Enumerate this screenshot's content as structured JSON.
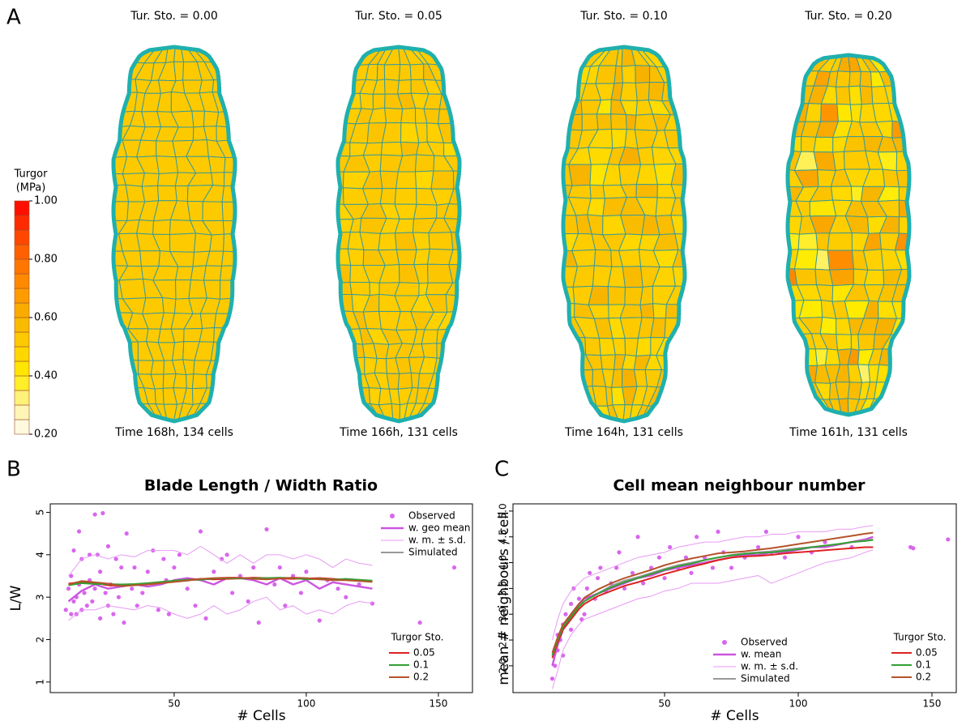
{
  "panel_a": {
    "label": "A",
    "colorbar": {
      "title": [
        "Turgor",
        "(MPa)"
      ],
      "lim": [
        0.2,
        1.0
      ],
      "ticks": [
        {
          "value": 1,
          "label": "1.00"
        },
        {
          "value": 0.8,
          "label": "0.80"
        },
        {
          "value": 0.6,
          "label": "0.60"
        },
        {
          "value": 0.4,
          "label": "0.40"
        },
        {
          "value": 0.2,
          "label": "0.20"
        }
      ],
      "colors": [
        "#fffaf2",
        "#fff4a0",
        "#ffec00",
        "#ffd000",
        "#f7b400",
        "#ff9200",
        "#ff6c00",
        "#ff3a00",
        "#ff0000"
      ]
    },
    "leaves": [
      {
        "title": "Tur. Sto. = 0.00",
        "turgor_sto": 0.0,
        "caption": "Time 168h, 134 cells"
      },
      {
        "title": "Tur. Sto. = 0.05",
        "turgor_sto": 0.05,
        "caption": "Time 166h, 131 cells"
      },
      {
        "title": "Tur. Sto. = 0.10",
        "turgor_sto": 0.1,
        "caption": "Time 164h, 131 cells"
      },
      {
        "title": "Tur. Sto. = 0.20",
        "turgor_sto": 0.2,
        "caption": "Time 161h, 131 cells"
      }
    ]
  },
  "chart_data": [
    {
      "type": "line",
      "panel_label": "B",
      "title": "Blade Length / Width Ratio",
      "x_label": "# Cells",
      "y_label": "L/W",
      "xlim": [
        3.1,
        162.9
      ],
      "ylim": [
        0.75,
        5.2
      ],
      "xticks": [
        50,
        100,
        150
      ],
      "yticks": [
        1,
        2,
        3,
        4,
        5
      ],
      "observed": {
        "name": "Observed",
        "color": "#d966ee",
        "x": [
          9,
          10,
          11,
          11,
          12,
          12,
          13,
          13,
          14,
          14,
          15,
          15,
          16,
          17,
          18,
          18,
          19,
          20,
          20,
          21,
          22,
          22,
          23,
          24,
          25,
          25,
          26,
          27,
          28,
          29,
          30,
          31,
          32,
          34,
          35,
          36,
          38,
          40,
          42,
          44,
          46,
          47,
          48,
          50,
          52,
          55,
          58,
          60,
          62,
          65,
          68,
          70,
          72,
          75,
          78,
          80,
          82,
          85,
          88,
          90,
          92,
          95,
          98,
          100,
          105,
          108,
          112,
          115,
          120,
          125,
          143,
          156
        ],
        "y": [
          2.7,
          3.2,
          2.6,
          3.5,
          2.9,
          4.1,
          3.0,
          2.6,
          4.55,
          3.3,
          2.7,
          3.9,
          3.1,
          2.8,
          4.0,
          3.4,
          2.9,
          4.95,
          3.2,
          4.0,
          2.5,
          3.6,
          4.98,
          3.1,
          2.8,
          4.2,
          3.3,
          2.6,
          3.9,
          3.0,
          3.7,
          2.4,
          4.5,
          3.2,
          3.7,
          2.8,
          3.1,
          3.6,
          4.1,
          2.7,
          3.9,
          3.4,
          2.6,
          3.7,
          4.0,
          3.2,
          2.8,
          4.55,
          2.5,
          3.6,
          3.9,
          4.0,
          3.1,
          3.5,
          2.9,
          3.7,
          2.4,
          4.6,
          3.3,
          3.7,
          2.8,
          3.5,
          3.1,
          3.6,
          2.45,
          3.4,
          3.2,
          3.0,
          3.3,
          2.85,
          2.4,
          3.7
        ]
      },
      "x": [
        10,
        15,
        20,
        25,
        30,
        35,
        40,
        45,
        50,
        55,
        60,
        65,
        70,
        75,
        80,
        85,
        90,
        95,
        100,
        105,
        110,
        115,
        120,
        125
      ],
      "series": [
        {
          "name": "w. geo mean",
          "color": "#cc55e0",
          "values": [
            2.9,
            3.15,
            3.3,
            3.2,
            3.25,
            3.3,
            3.25,
            3.3,
            3.4,
            3.45,
            3.4,
            3.3,
            3.45,
            3.45,
            3.4,
            3.3,
            3.45,
            3.3,
            3.4,
            3.2,
            3.35,
            3.3,
            3.25,
            3.2
          ]
        },
        {
          "name": "w. m. ± s.d.",
          "color": "#e79af4",
          "values": [
            3.5,
            3.9,
            4.0,
            3.9,
            4.0,
            3.95,
            4.1,
            4.1,
            4.1,
            4.0,
            4.2,
            4.0,
            3.8,
            4.0,
            3.8,
            4.0,
            4.0,
            3.9,
            4.0,
            3.9,
            3.7,
            3.9,
            3.8,
            3.75
          ],
          "values_low": [
            2.45,
            2.7,
            2.7,
            2.8,
            2.75,
            2.7,
            2.8,
            2.75,
            2.6,
            2.5,
            2.6,
            2.8,
            2.6,
            2.7,
            2.9,
            3.0,
            2.7,
            2.8,
            2.6,
            2.7,
            2.6,
            2.8,
            2.9,
            2.85
          ]
        },
        {
          "name": "Simulated",
          "color": "#999999",
          "values": [
            3.3,
            3.35,
            3.32,
            3.3,
            3.28,
            3.3,
            3.32,
            3.35,
            3.38,
            3.4,
            3.42,
            3.43,
            3.44,
            3.45,
            3.45,
            3.44,
            3.45,
            3.44,
            3.43,
            3.44,
            3.42,
            3.42,
            3.4,
            3.38
          ]
        }
      ],
      "legend2_title": "Turgor Sto.",
      "series2": [
        {
          "name": "0.05",
          "color": "#dd2222",
          "values": [
            3.32,
            3.36,
            3.33,
            3.28,
            3.27,
            3.29,
            3.31,
            3.34,
            3.37,
            3.41,
            3.43,
            3.42,
            3.43,
            3.44,
            3.46,
            3.45,
            3.44,
            3.43,
            3.44,
            3.45,
            3.43,
            3.41,
            3.39,
            3.37
          ]
        },
        {
          "name": "0.1",
          "color": "#33a033",
          "values": [
            3.28,
            3.33,
            3.31,
            3.31,
            3.3,
            3.31,
            3.33,
            3.36,
            3.39,
            3.41,
            3.41,
            3.44,
            3.45,
            3.44,
            3.44,
            3.45,
            3.46,
            3.45,
            3.42,
            3.43,
            3.41,
            3.43,
            3.41,
            3.39
          ]
        },
        {
          "name": "0.2",
          "color": "#b5532a",
          "values": [
            3.3,
            3.38,
            3.35,
            3.32,
            3.26,
            3.28,
            3.3,
            3.33,
            3.36,
            3.39,
            3.43,
            3.45,
            3.46,
            3.46,
            3.43,
            3.42,
            3.44,
            3.46,
            3.45,
            3.42,
            3.4,
            3.4,
            3.38,
            3.36
          ]
        }
      ]
    },
    {
      "type": "line",
      "panel_label": "C",
      "title": "Cell mean neighbour number",
      "x_label": "# Cells",
      "y_label": "mean # neighbours / cell",
      "xlim": [
        -6.7,
        159.1
      ],
      "ylim": [
        1.48,
        5.14
      ],
      "xticks": [
        50,
        100,
        150
      ],
      "yticks": [
        {
          "value": 2,
          "label": "2.0"
        },
        2.5,
        {
          "value": 3,
          "label": "3.0"
        },
        3.5,
        {
          "value": 4,
          "label": "4.0"
        },
        4.5,
        {
          "value": 5,
          "label": "5.0"
        }
      ],
      "observed": {
        "name": "Observed",
        "color": "#d966ee",
        "x": [
          8,
          9,
          10,
          10,
          11,
          12,
          12,
          13,
          14,
          15,
          15,
          16,
          17,
          18,
          19,
          20,
          21,
          22,
          24,
          25,
          26,
          28,
          30,
          32,
          33,
          35,
          38,
          40,
          42,
          45,
          48,
          50,
          52,
          55,
          58,
          60,
          62,
          65,
          68,
          70,
          72,
          75,
          80,
          85,
          88,
          90,
          95,
          100,
          105,
          110,
          120,
          142,
          143,
          156
        ],
        "y": [
          1.75,
          2.0,
          2.3,
          2.6,
          2.5,
          2.8,
          2.2,
          3.0,
          2.9,
          3.2,
          2.7,
          3.5,
          3.1,
          3.3,
          2.9,
          3.0,
          3.5,
          3.8,
          3.3,
          3.7,
          3.9,
          3.45,
          3.6,
          3.9,
          4.2,
          3.5,
          3.8,
          4.5,
          3.6,
          3.9,
          4.1,
          3.7,
          4.3,
          3.9,
          4.1,
          3.8,
          4.5,
          4.1,
          3.9,
          4.6,
          4.2,
          3.9,
          4.1,
          4.3,
          4.6,
          4.2,
          4.1,
          4.5,
          4.2,
          4.4,
          4.3,
          4.3,
          4.28,
          4.45
        ]
      },
      "x": [
        8,
        10,
        12,
        15,
        18,
        20,
        25,
        30,
        35,
        40,
        45,
        50,
        55,
        60,
        65,
        70,
        75,
        80,
        85,
        90,
        95,
        100,
        105,
        110,
        115,
        120,
        125,
        128
      ],
      "series": [
        {
          "name": "w. mean",
          "color": "#cc55e0",
          "values": [
            2.0,
            2.4,
            2.7,
            3.0,
            3.2,
            3.3,
            3.4,
            3.5,
            3.6,
            3.7,
            3.75,
            3.85,
            3.9,
            3.95,
            4.0,
            4.05,
            4.1,
            4.15,
            4.15,
            4.2,
            4.2,
            4.25,
            4.3,
            4.3,
            4.35,
            4.4,
            4.45,
            4.5
          ]
        },
        {
          "name": "w. m. ± s.d.",
          "color": "#e79af4",
          "values": [
            2.5,
            2.9,
            3.2,
            3.45,
            3.6,
            3.7,
            3.8,
            3.9,
            4.0,
            4.1,
            4.15,
            4.2,
            4.3,
            4.35,
            4.4,
            4.4,
            4.45,
            4.5,
            4.5,
            4.55,
            4.55,
            4.6,
            4.6,
            4.6,
            4.65,
            4.65,
            4.7,
            4.72
          ],
          "values_low": [
            1.55,
            1.9,
            2.3,
            2.6,
            2.8,
            2.9,
            3.0,
            3.1,
            3.2,
            3.3,
            3.35,
            3.45,
            3.5,
            3.6,
            3.6,
            3.6,
            3.65,
            3.7,
            3.75,
            3.6,
            3.7,
            3.8,
            3.9,
            4.0,
            4.05,
            4.1,
            4.2,
            4.25
          ]
        },
        {
          "name": "Simulated",
          "color": "#999999",
          "values": [
            2.2,
            2.5,
            2.75,
            2.95,
            3.15,
            3.25,
            3.4,
            3.55,
            3.65,
            3.72,
            3.8,
            3.88,
            3.95,
            4.0,
            4.05,
            4.1,
            4.15,
            4.18,
            4.2,
            4.22,
            4.25,
            4.28,
            4.3,
            4.33,
            4.36,
            4.4,
            4.43,
            4.45
          ]
        }
      ],
      "legend2_title": "Turgor Sto.",
      "series2": [
        {
          "name": "0.05",
          "color": "#dd2222",
          "values": [
            2.15,
            2.45,
            2.7,
            2.9,
            3.1,
            3.2,
            3.35,
            3.45,
            3.55,
            3.62,
            3.7,
            3.78,
            3.85,
            3.92,
            3.98,
            4.05,
            4.1,
            4.12,
            4.13,
            4.15,
            4.18,
            4.2,
            4.22,
            4.24,
            4.26,
            4.28,
            4.3,
            4.3
          ]
        },
        {
          "name": "0.1",
          "color": "#33a033",
          "values": [
            2.2,
            2.5,
            2.75,
            2.95,
            3.15,
            3.25,
            3.4,
            3.52,
            3.62,
            3.7,
            3.78,
            3.86,
            3.93,
            3.98,
            4.05,
            4.1,
            4.14,
            4.17,
            4.19,
            4.2,
            4.23,
            4.26,
            4.3,
            4.33,
            4.36,
            4.4,
            4.42,
            4.44
          ]
        },
        {
          "name": "0.2",
          "color": "#b5532a",
          "values": [
            2.25,
            2.55,
            2.8,
            3.0,
            3.2,
            3.32,
            3.48,
            3.6,
            3.7,
            3.78,
            3.86,
            3.95,
            4.02,
            4.08,
            4.13,
            4.18,
            4.2,
            4.22,
            4.25,
            4.28,
            4.32,
            4.36,
            4.4,
            4.44,
            4.48,
            4.52,
            4.56,
            4.58
          ]
        }
      ]
    }
  ]
}
